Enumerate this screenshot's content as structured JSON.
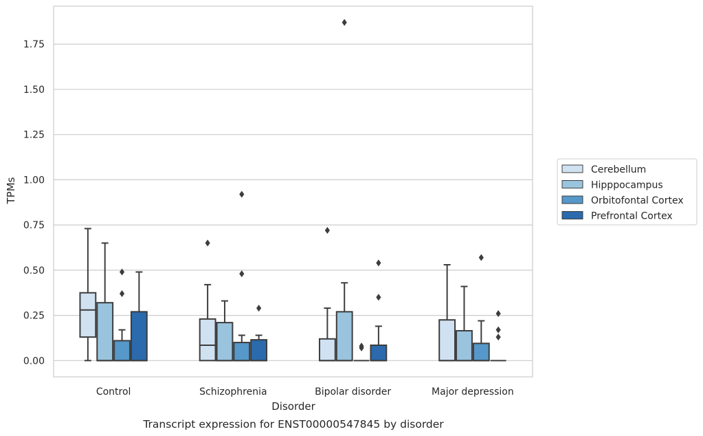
{
  "chart_data": {
    "type": "box",
    "caption": "Transcript expression for ENST00000547845 by disorder",
    "xlabel": "Disorder",
    "ylabel": "TPMs",
    "ylim": [
      -0.09,
      1.96
    ],
    "yticks": [
      0.0,
      0.25,
      0.5,
      0.75,
      1.0,
      1.25,
      1.5,
      1.75
    ],
    "ytick_labels": [
      "0.00",
      "0.25",
      "0.50",
      "0.75",
      "1.00",
      "1.25",
      "1.50",
      "1.75"
    ],
    "grid": "horizontal",
    "legend_position": "right",
    "categories": [
      "Control",
      "Schizophrenia",
      "Bipolar disorder",
      "Major depression"
    ],
    "series": [
      {
        "name": "Cerebellum",
        "color": "#d0e1f2",
        "boxes": [
          {
            "whislo": 0.0,
            "q1": 0.13,
            "med": 0.28,
            "q3": 0.375,
            "whishi": 0.73,
            "fliers": []
          },
          {
            "whislo": 0.0,
            "q1": 0.0,
            "med": 0.085,
            "q3": 0.23,
            "whishi": 0.42,
            "fliers": [
              0.65
            ]
          },
          {
            "whislo": 0.0,
            "q1": 0.0,
            "med": 0.0,
            "q3": 0.12,
            "whishi": 0.29,
            "fliers": [
              0.72
            ]
          },
          {
            "whislo": 0.0,
            "q1": 0.0,
            "med": 0.0,
            "q3": 0.225,
            "whishi": 0.53,
            "fliers": []
          }
        ]
      },
      {
        "name": "Hipppocampus",
        "color": "#9ac4de",
        "boxes": [
          {
            "whislo": 0.0,
            "q1": 0.0,
            "med": 0.0,
            "q3": 0.32,
            "whishi": 0.65,
            "fliers": []
          },
          {
            "whislo": 0.0,
            "q1": 0.0,
            "med": 0.0,
            "q3": 0.21,
            "whishi": 0.33,
            "fliers": []
          },
          {
            "whislo": 0.0,
            "q1": 0.0,
            "med": 0.0,
            "q3": 0.27,
            "whishi": 0.43,
            "fliers": [
              1.87
            ]
          },
          {
            "whislo": 0.0,
            "q1": 0.0,
            "med": 0.0,
            "q3": 0.165,
            "whishi": 0.41,
            "fliers": []
          }
        ]
      },
      {
        "name": "Orbitofontal Cortex",
        "color": "#5598c9",
        "boxes": [
          {
            "whislo": 0.0,
            "q1": 0.0,
            "med": 0.0,
            "q3": 0.11,
            "whishi": 0.17,
            "fliers": [
              0.37,
              0.49
            ]
          },
          {
            "whislo": 0.0,
            "q1": 0.0,
            "med": 0.0,
            "q3": 0.1,
            "whishi": 0.14,
            "fliers": [
              0.48,
              0.92
            ]
          },
          {
            "whislo": 0.0,
            "q1": 0.0,
            "med": 0.0,
            "q3": 0.0,
            "whishi": 0.0,
            "fliers": [
              0.07,
              0.08
            ]
          },
          {
            "whislo": 0.0,
            "q1": 0.0,
            "med": 0.0,
            "q3": 0.095,
            "whishi": 0.22,
            "fliers": [
              0.57
            ]
          }
        ]
      },
      {
        "name": "Prefrontal Cortex",
        "color": "#2a6aad",
        "boxes": [
          {
            "whislo": 0.0,
            "q1": 0.0,
            "med": 0.0,
            "q3": 0.27,
            "whishi": 0.49,
            "fliers": []
          },
          {
            "whislo": 0.0,
            "q1": 0.0,
            "med": 0.0,
            "q3": 0.115,
            "whishi": 0.14,
            "fliers": [
              0.29
            ]
          },
          {
            "whislo": 0.0,
            "q1": 0.0,
            "med": 0.0,
            "q3": 0.085,
            "whishi": 0.19,
            "fliers": [
              0.35,
              0.54
            ]
          },
          {
            "whislo": 0.0,
            "q1": 0.0,
            "med": 0.0,
            "q3": 0.0,
            "whishi": 0.0,
            "fliers": [
              0.13,
              0.17,
              0.26
            ]
          }
        ]
      }
    ]
  }
}
